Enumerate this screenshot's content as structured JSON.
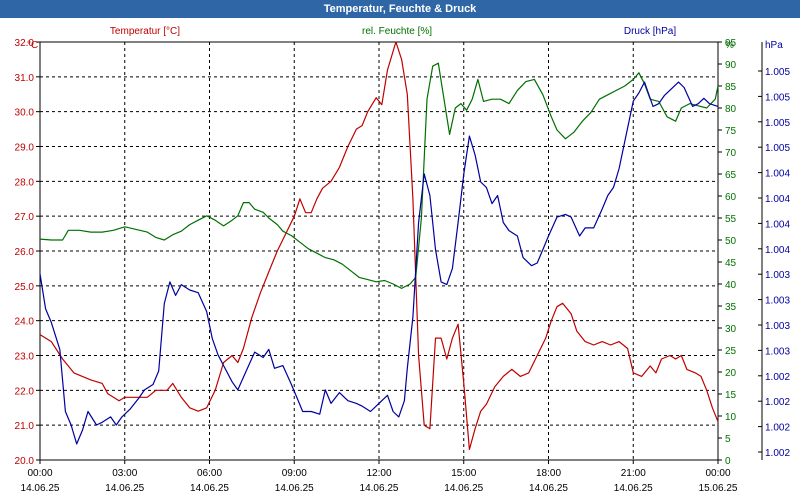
{
  "window": {
    "title": "Temperatur, Feuchte & Druck"
  },
  "chart_data": {
    "type": "line",
    "title": "Temperatur, Feuchte & Druck",
    "grid": true,
    "x_ticks": [
      {
        "time": "00:00",
        "date": "14.06.25"
      },
      {
        "time": "03:00",
        "date": "14.06.25"
      },
      {
        "time": "06:00",
        "date": "14.06.25"
      },
      {
        "time": "09:00",
        "date": "14.06.25"
      },
      {
        "time": "12:00",
        "date": "14.06.25"
      },
      {
        "time": "15:00",
        "date": "14.06.25"
      },
      {
        "time": "18:00",
        "date": "14.06.25"
      },
      {
        "time": "21:00",
        "date": "14.06.25"
      },
      {
        "time": "00:00",
        "date": "15.06.25"
      }
    ],
    "xlim_hours": [
      0,
      24
    ],
    "axes": {
      "temperature": {
        "label": "Temperatur [°C]",
        "unit": "°C",
        "color": "#c00000",
        "ylim": [
          20.0,
          32.0
        ],
        "ticks": [
          "20.0",
          "21.0",
          "22.0",
          "23.0",
          "24.0",
          "25.0",
          "26.0",
          "27.0",
          "28.0",
          "29.0",
          "30.0",
          "31.0",
          "32.0"
        ]
      },
      "humidity": {
        "label": "rel. Feuchte [%]",
        "unit": "%",
        "color": "#007000",
        "ylim": [
          0,
          95
        ],
        "ticks": [
          "0",
          "5",
          "10",
          "15",
          "20",
          "25",
          "30",
          "35",
          "40",
          "45",
          "50",
          "55",
          "60",
          "65",
          "70",
          "75",
          "80",
          "85",
          "90",
          "95"
        ]
      },
      "pressure": {
        "label": "Druck [hPa]",
        "unit": "hPa",
        "color": "#0000a0",
        "ticks": [
          "1.002",
          "1.002",
          "1.002",
          "1.002",
          "1.003",
          "1.003",
          "1.003",
          "1.003",
          "1.004",
          "1.004",
          "1.004",
          "1.004",
          "1.005",
          "1.005",
          "1.005",
          "1.005"
        ]
      }
    },
    "series": [
      {
        "name": "Temperatur [°C]",
        "axis": "temperature",
        "color": "#c00000",
        "points": [
          [
            0.0,
            23.6
          ],
          [
            0.4,
            23.4
          ],
          [
            0.8,
            22.9
          ],
          [
            1.2,
            22.5
          ],
          [
            1.8,
            22.3
          ],
          [
            2.2,
            22.2
          ],
          [
            2.4,
            21.9
          ],
          [
            2.8,
            21.7
          ],
          [
            3.0,
            21.8
          ],
          [
            3.4,
            21.8
          ],
          [
            3.8,
            21.8
          ],
          [
            4.1,
            22.0
          ],
          [
            4.5,
            22.0
          ],
          [
            4.7,
            22.2
          ],
          [
            5.0,
            21.8
          ],
          [
            5.3,
            21.5
          ],
          [
            5.6,
            21.4
          ],
          [
            5.9,
            21.5
          ],
          [
            6.2,
            22.0
          ],
          [
            6.5,
            22.8
          ],
          [
            6.8,
            23.0
          ],
          [
            7.0,
            22.8
          ],
          [
            7.2,
            23.2
          ],
          [
            7.5,
            24.1
          ],
          [
            7.8,
            24.8
          ],
          [
            8.0,
            25.2
          ],
          [
            8.2,
            25.6
          ],
          [
            8.4,
            26.0
          ],
          [
            8.7,
            26.5
          ],
          [
            9.0,
            27.0
          ],
          [
            9.2,
            27.5
          ],
          [
            9.4,
            27.1
          ],
          [
            9.6,
            27.1
          ],
          [
            9.8,
            27.5
          ],
          [
            10.0,
            27.8
          ],
          [
            10.3,
            28.0
          ],
          [
            10.6,
            28.4
          ],
          [
            10.9,
            29.0
          ],
          [
            11.2,
            29.5
          ],
          [
            11.4,
            29.6
          ],
          [
            11.6,
            30.0
          ],
          [
            11.9,
            30.4
          ],
          [
            12.1,
            30.2
          ],
          [
            12.3,
            31.2
          ],
          [
            12.6,
            32.0
          ],
          [
            12.8,
            31.5
          ],
          [
            13.0,
            30.5
          ],
          [
            13.2,
            27.5
          ],
          [
            13.4,
            23.0
          ],
          [
            13.6,
            21.0
          ],
          [
            13.8,
            20.9
          ],
          [
            14.0,
            23.5
          ],
          [
            14.2,
            23.5
          ],
          [
            14.4,
            22.9
          ],
          [
            14.6,
            23.5
          ],
          [
            14.8,
            23.9
          ],
          [
            15.0,
            22.2
          ],
          [
            15.2,
            20.3
          ],
          [
            15.4,
            20.9
          ],
          [
            15.6,
            21.4
          ],
          [
            15.8,
            21.6
          ],
          [
            16.1,
            22.1
          ],
          [
            16.4,
            22.4
          ],
          [
            16.7,
            22.6
          ],
          [
            17.0,
            22.4
          ],
          [
            17.3,
            22.5
          ],
          [
            17.6,
            23.0
          ],
          [
            17.9,
            23.5
          ],
          [
            18.1,
            24.0
          ],
          [
            18.3,
            24.4
          ],
          [
            18.5,
            24.5
          ],
          [
            18.8,
            24.2
          ],
          [
            19.0,
            23.7
          ],
          [
            19.3,
            23.4
          ],
          [
            19.6,
            23.3
          ],
          [
            19.9,
            23.4
          ],
          [
            20.2,
            23.3
          ],
          [
            20.5,
            23.4
          ],
          [
            20.8,
            23.2
          ],
          [
            21.0,
            22.5
          ],
          [
            21.3,
            22.4
          ],
          [
            21.6,
            22.7
          ],
          [
            21.8,
            22.5
          ],
          [
            22.0,
            22.9
          ],
          [
            22.3,
            23.0
          ],
          [
            22.5,
            22.9
          ],
          [
            22.7,
            23.0
          ],
          [
            22.9,
            22.6
          ],
          [
            23.2,
            22.5
          ],
          [
            23.4,
            22.4
          ],
          [
            23.6,
            22.0
          ],
          [
            23.8,
            21.5
          ],
          [
            24.0,
            21.1
          ]
        ]
      },
      {
        "name": "rel. Feuchte [%]",
        "axis": "humidity",
        "color": "#007000",
        "points": [
          [
            0.0,
            50.2
          ],
          [
            0.4,
            50.0
          ],
          [
            0.8,
            50.0
          ],
          [
            1.0,
            52.2
          ],
          [
            1.4,
            52.2
          ],
          [
            1.8,
            51.8
          ],
          [
            2.2,
            51.8
          ],
          [
            2.6,
            52.2
          ],
          [
            3.0,
            53.0
          ],
          [
            3.4,
            52.4
          ],
          [
            3.8,
            51.8
          ],
          [
            4.1,
            50.6
          ],
          [
            4.4,
            50.0
          ],
          [
            4.7,
            51.2
          ],
          [
            5.0,
            52.0
          ],
          [
            5.3,
            53.5
          ],
          [
            5.6,
            54.5
          ],
          [
            5.9,
            55.5
          ],
          [
            6.2,
            54.5
          ],
          [
            6.5,
            53.2
          ],
          [
            6.8,
            54.5
          ],
          [
            7.0,
            55.5
          ],
          [
            7.2,
            58.5
          ],
          [
            7.4,
            58.5
          ],
          [
            7.6,
            57.0
          ],
          [
            7.9,
            56.3
          ],
          [
            8.1,
            55.0
          ],
          [
            8.4,
            53.5
          ],
          [
            8.6,
            52.0
          ],
          [
            8.9,
            51.0
          ],
          [
            9.2,
            49.5
          ],
          [
            9.5,
            48.0
          ],
          [
            9.8,
            47.0
          ],
          [
            10.1,
            46.0
          ],
          [
            10.4,
            45.5
          ],
          [
            10.7,
            44.5
          ],
          [
            11.0,
            43.0
          ],
          [
            11.3,
            41.5
          ],
          [
            11.6,
            41.0
          ],
          [
            11.9,
            40.5
          ],
          [
            12.2,
            40.8
          ],
          [
            12.5,
            40.0
          ],
          [
            12.8,
            39.0
          ],
          [
            13.1,
            40.0
          ],
          [
            13.3,
            41.5
          ],
          [
            13.5,
            55.0
          ],
          [
            13.7,
            82.0
          ],
          [
            13.9,
            89.5
          ],
          [
            14.1,
            90.2
          ],
          [
            14.3,
            82.0
          ],
          [
            14.5,
            74.0
          ],
          [
            14.7,
            80.0
          ],
          [
            14.9,
            81.0
          ],
          [
            15.1,
            79.5
          ],
          [
            15.3,
            82.0
          ],
          [
            15.5,
            86.5
          ],
          [
            15.7,
            81.5
          ],
          [
            16.0,
            82.0
          ],
          [
            16.3,
            82.0
          ],
          [
            16.6,
            81.0
          ],
          [
            16.9,
            84.0
          ],
          [
            17.2,
            86.0
          ],
          [
            17.5,
            86.5
          ],
          [
            17.8,
            83.0
          ],
          [
            18.1,
            78.0
          ],
          [
            18.3,
            75.0
          ],
          [
            18.6,
            73.0
          ],
          [
            18.9,
            74.5
          ],
          [
            19.2,
            77.0
          ],
          [
            19.5,
            79.0
          ],
          [
            19.8,
            82.0
          ],
          [
            20.1,
            83.0
          ],
          [
            20.4,
            84.0
          ],
          [
            20.7,
            85.0
          ],
          [
            21.0,
            86.5
          ],
          [
            21.2,
            88.0
          ],
          [
            21.4,
            85.5
          ],
          [
            21.6,
            82.0
          ],
          [
            21.9,
            81.5
          ],
          [
            22.2,
            78.0
          ],
          [
            22.5,
            77.0
          ],
          [
            22.7,
            80.0
          ],
          [
            23.0,
            81.0
          ],
          [
            23.3,
            80.5
          ],
          [
            23.6,
            80.0
          ],
          [
            23.9,
            82.0
          ],
          [
            24.0,
            85.0
          ]
        ]
      },
      {
        "name": "Druck [hPa]",
        "axis": "pressure",
        "color": "#0000a0",
        "y_scale": "raw units (axis labels rounded to 3 decimals)",
        "points": [
          [
            0.0,
            6.6
          ],
          [
            0.2,
            5.3
          ],
          [
            0.4,
            4.8
          ],
          [
            0.7,
            3.8
          ],
          [
            0.9,
            1.5
          ],
          [
            1.1,
            1.0
          ],
          [
            1.3,
            0.3
          ],
          [
            1.5,
            0.8
          ],
          [
            1.7,
            1.5
          ],
          [
            2.0,
            1.0
          ],
          [
            2.2,
            1.1
          ],
          [
            2.5,
            1.3
          ],
          [
            2.7,
            1.0
          ],
          [
            2.9,
            1.3
          ],
          [
            3.2,
            1.6
          ],
          [
            3.5,
            2.0
          ],
          [
            3.7,
            2.3
          ],
          [
            4.0,
            2.5
          ],
          [
            4.2,
            3.0
          ],
          [
            4.4,
            5.5
          ],
          [
            4.6,
            6.3
          ],
          [
            4.8,
            5.8
          ],
          [
            5.0,
            6.2
          ],
          [
            5.3,
            6.0
          ],
          [
            5.6,
            5.9
          ],
          [
            5.9,
            5.2
          ],
          [
            6.1,
            4.2
          ],
          [
            6.3,
            3.6
          ],
          [
            6.5,
            3.2
          ],
          [
            6.8,
            2.6
          ],
          [
            7.0,
            2.3
          ],
          [
            7.3,
            3.0
          ],
          [
            7.6,
            3.7
          ],
          [
            7.9,
            3.5
          ],
          [
            8.1,
            3.8
          ],
          [
            8.3,
            3.1
          ],
          [
            8.6,
            3.2
          ],
          [
            8.9,
            2.5
          ],
          [
            9.1,
            2.0
          ],
          [
            9.3,
            1.5
          ],
          [
            9.6,
            1.5
          ],
          [
            9.9,
            1.4
          ],
          [
            10.1,
            2.3
          ],
          [
            10.3,
            1.8
          ],
          [
            10.6,
            2.2
          ],
          [
            10.9,
            1.9
          ],
          [
            11.2,
            1.8
          ],
          [
            11.4,
            1.7
          ],
          [
            11.7,
            1.5
          ],
          [
            11.9,
            1.7
          ],
          [
            12.1,
            1.9
          ],
          [
            12.3,
            2.1
          ],
          [
            12.5,
            1.5
          ],
          [
            12.7,
            1.3
          ],
          [
            12.9,
            1.9
          ],
          [
            13.0,
            3.1
          ],
          [
            13.2,
            5.0
          ],
          [
            13.4,
            8.5
          ],
          [
            13.6,
            10.3
          ],
          [
            13.8,
            9.5
          ],
          [
            14.0,
            7.5
          ],
          [
            14.2,
            6.3
          ],
          [
            14.4,
            6.2
          ],
          [
            14.6,
            6.8
          ],
          [
            14.8,
            8.5
          ],
          [
            15.0,
            10.3
          ],
          [
            15.2,
            11.7
          ],
          [
            15.4,
            11.0
          ],
          [
            15.6,
            10.0
          ],
          [
            15.8,
            9.8
          ],
          [
            16.0,
            9.2
          ],
          [
            16.2,
            9.5
          ],
          [
            16.4,
            8.5
          ],
          [
            16.6,
            8.2
          ],
          [
            16.9,
            8.0
          ],
          [
            17.1,
            7.2
          ],
          [
            17.4,
            6.9
          ],
          [
            17.6,
            7.0
          ],
          [
            17.8,
            7.5
          ],
          [
            18.0,
            8.0
          ],
          [
            18.3,
            8.7
          ],
          [
            18.6,
            8.8
          ],
          [
            18.8,
            8.7
          ],
          [
            19.1,
            8.0
          ],
          [
            19.3,
            8.3
          ],
          [
            19.6,
            8.3
          ],
          [
            19.9,
            9.0
          ],
          [
            20.1,
            9.5
          ],
          [
            20.3,
            9.8
          ],
          [
            20.5,
            10.5
          ],
          [
            20.8,
            12.0
          ],
          [
            21.0,
            13.0
          ],
          [
            21.2,
            13.3
          ],
          [
            21.4,
            13.7
          ],
          [
            21.7,
            12.8
          ],
          [
            21.9,
            12.9
          ],
          [
            22.1,
            13.2
          ],
          [
            22.3,
            13.4
          ],
          [
            22.6,
            13.7
          ],
          [
            22.8,
            13.5
          ],
          [
            23.1,
            12.8
          ],
          [
            23.3,
            12.9
          ],
          [
            23.5,
            13.1
          ],
          [
            23.7,
            12.9
          ],
          [
            24.0,
            12.8
          ]
        ]
      }
    ]
  }
}
